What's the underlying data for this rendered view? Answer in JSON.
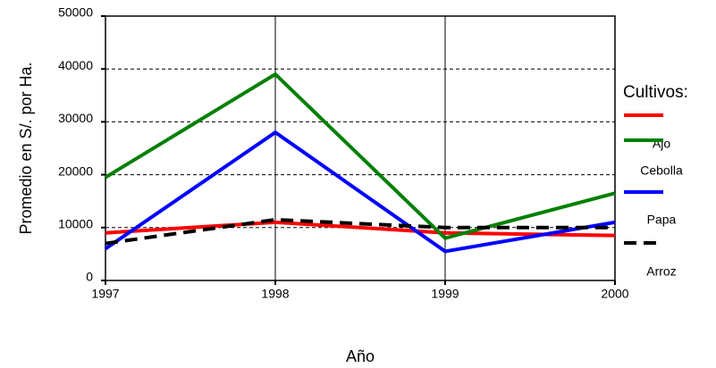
{
  "chart_data": {
    "type": "line",
    "y_label": "Promedio en S/. por Ha.",
    "x_label": "Año",
    "legend_title": "Cultivos:",
    "x": [
      1997,
      1998,
      1999,
      2000
    ],
    "xlim": [
      1997,
      2000
    ],
    "xticks": [
      1997,
      1998,
      1999,
      2000
    ],
    "ylim": [
      0,
      50000
    ],
    "yticks": [
      0,
      10000,
      20000,
      30000,
      40000,
      50000
    ],
    "grid": true,
    "series": [
      {
        "name": "Ajo",
        "color": "#ff0000",
        "dashed": false,
        "values": [
          9000,
          11000,
          9000,
          8500
        ]
      },
      {
        "name": "Cebolla",
        "color": "#008000",
        "dashed": false,
        "values": [
          19500,
          39000,
          8000,
          16500
        ]
      },
      {
        "name": "Papa",
        "color": "#0000ff",
        "dashed": false,
        "values": [
          6000,
          28000,
          5500,
          11000
        ]
      },
      {
        "name": "Arroz",
        "color": "#000000",
        "dashed": true,
        "values": [
          7000,
          11500,
          10000,
          10000
        ]
      }
    ]
  }
}
